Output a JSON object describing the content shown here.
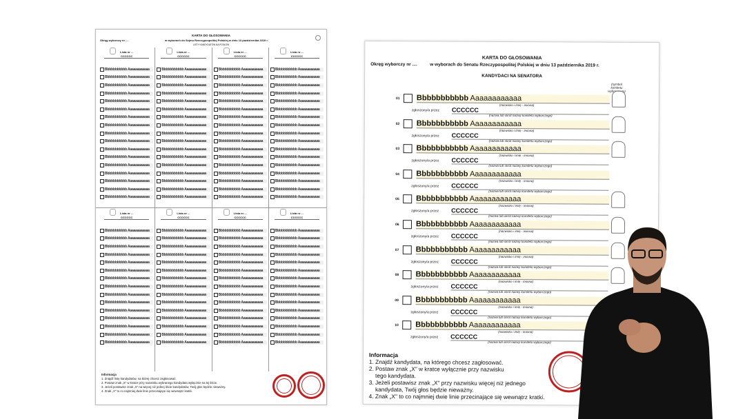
{
  "left_ballot": {
    "title": "KARTA DO GŁOSOWANIA",
    "district": "Okręg wyborczy nr ....",
    "election": "w wyborach do Sejmu Rzeczypospolitej Polskiej w dniu 13 października 2019 r.",
    "subtitle": "LISTY KANDYDATÓW NA POSŁÓW",
    "list_label": "Lista nr ...",
    "committee": "CCCCCC",
    "candidate_placeholder": "Bbbbbbbbbbb Aaaaaaaaaaaa",
    "rows_per_list": 17,
    "lists_per_half": 4,
    "info_title": "Informacja",
    "info": [
      "1. Znajdź listę kandydatów, na której chcesz zagłosować.",
      "2. Postaw znak „X\" w kratce przy nazwisku wybranego kandydata wyłącznie na tej liście.",
      "3. Jeżeli postawisz znak „X\" na więcej niż jednej liście kandydatów, Twój głos będzie nieważny.",
      "4. Znak „X\" to co najmniej dwie linie przecinające się wewnątrz kratki."
    ]
  },
  "right_ballot": {
    "title": "KARTA DO GŁOSOWANIA",
    "district": "Okręg wyborczy nr ....",
    "election": "w wyborach do Senatu Rzeczypospolitej Polskiej w dniu 13 października 2019 r.",
    "subtitle": "KANDYDACI NA SENATORA",
    "symbol_header": "(symbol komitetu wyborczego)",
    "surname": "Bbbbbbbbbbb",
    "name": "Aaaaaaaaaaaa",
    "name_caption": "(nazwisko i imię - imiona)",
    "submitted_by": "zgłoszony/a przez",
    "committee": "CCCCCC",
    "committee_caption": "(nazwa lub skrót nazwy komitetu wyborczego)",
    "candidates": [
      {
        "num": "01",
        "symbol": true
      },
      {
        "num": "02",
        "symbol": true
      },
      {
        "num": "03",
        "symbol": true
      },
      {
        "num": "04",
        "symbol": false
      },
      {
        "num": "05",
        "symbol": true
      },
      {
        "num": "06",
        "symbol": true
      },
      {
        "num": "07",
        "symbol": true
      },
      {
        "num": "08",
        "symbol": true
      },
      {
        "num": "09",
        "symbol": true
      },
      {
        "num": "10",
        "symbol": true
      }
    ],
    "info_title": "Informacja",
    "info": [
      "1. Znajdź kandydata, na którego chcesz zagłosować.",
      "2. Postaw znak „X\" w kratce wyłącznie przy nazwisku",
      "    tego kandydata.",
      "3. Jeżeli postawisz znak „X\" przy nazwisku więcej niż jednego",
      "    kandydata, Twój głos będzie nieważny.",
      "4. Znak „X\" to co najmniej dwie linie przecinające się wewnątrz kratki."
    ]
  },
  "colors": {
    "stamp": "#b22222",
    "highlight": "#fbf6dc"
  }
}
